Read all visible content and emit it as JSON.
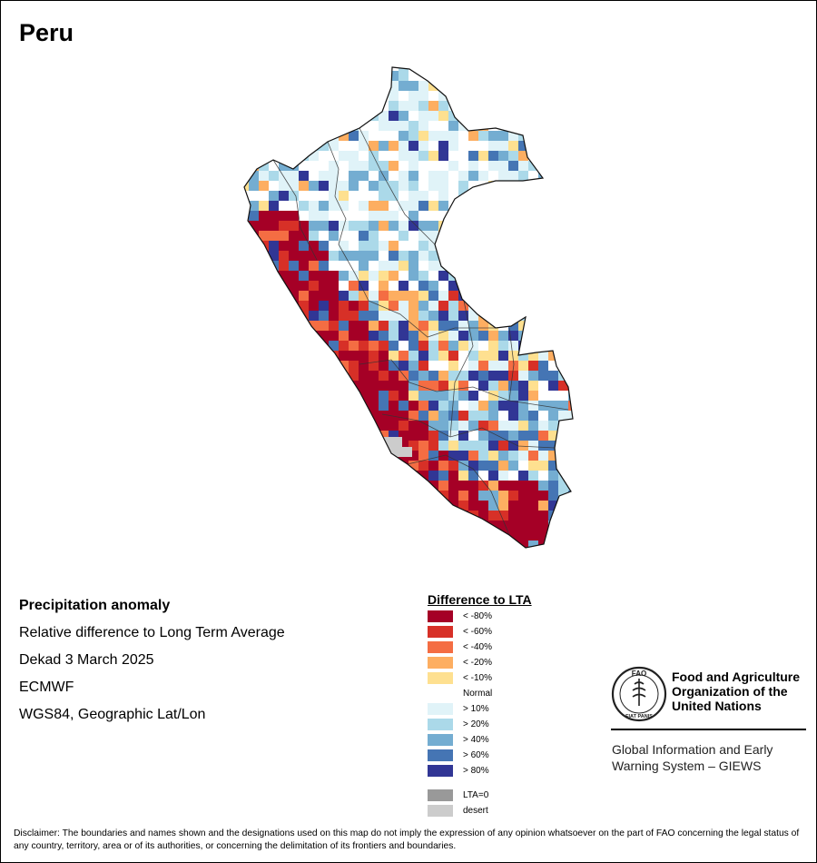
{
  "title": "Peru",
  "info": {
    "product": "Precipitation anomaly",
    "description": "Relative difference to Long Term Average",
    "period": "Dekad 3 March 2025",
    "source": "ECMWF",
    "projection": "WGS84, Geographic Lat/Lon"
  },
  "legend": {
    "title": "Difference to LTA",
    "items": [
      {
        "label": "< -80%",
        "color": "#a50026"
      },
      {
        "label": "< -60%",
        "color": "#d73027"
      },
      {
        "label": "< -40%",
        "color": "#f46d43"
      },
      {
        "label": "< -20%",
        "color": "#fdae61"
      },
      {
        "label": "< -10%",
        "color": "#fee090"
      },
      {
        "label": "Normal",
        "color": "#ffffff"
      },
      {
        "label": "> 10%",
        "color": "#e0f3f8"
      },
      {
        "label": "> 20%",
        "color": "#abd9e9"
      },
      {
        "label": "> 40%",
        "color": "#74add1"
      },
      {
        "label": "> 60%",
        "color": "#4575b4"
      },
      {
        "label": "> 80%",
        "color": "#313695"
      }
    ],
    "extra": [
      {
        "label": "LTA=0",
        "color": "#999999"
      },
      {
        "label": "desert",
        "color": "#cccccc"
      }
    ]
  },
  "org": {
    "name_line1": "Food and Agriculture",
    "name_line2": "Organization of the",
    "name_line3": "United Nations",
    "system_line1": "Global Information and Early",
    "system_line2": "Warning System – GIEWS",
    "logo_text_top": "FAO",
    "logo_text_bottom": "FIAT PANIS"
  },
  "disclaimer": "Disclaimer: The boundaries and names shown and the designations used on this map do not imply the expression of any opinion whatsoever on the part of FAO concerning the legal status of any country, territory, area or of its authorities, or concerning the delimitation of its frontiers and boundaries."
}
